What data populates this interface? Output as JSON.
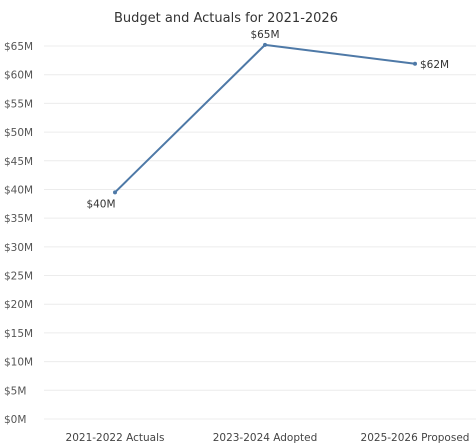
{
  "chart_data": {
    "type": "line",
    "title": "Budget and Actuals for 2021-2026",
    "xlabel": "",
    "ylabel": "",
    "categories": [
      "2021-2022 Actuals",
      "2023-2024 Adopted",
      "2025-2026 Proposed"
    ],
    "values": [
      39.5,
      65.2,
      61.9
    ],
    "data_labels": [
      "$40M",
      "$65M",
      "$62M"
    ],
    "ylim": [
      0,
      67
    ],
    "yticks": [
      0,
      5,
      10,
      15,
      20,
      25,
      30,
      35,
      40,
      45,
      50,
      55,
      60,
      65
    ],
    "ytick_labels": [
      "$0M",
      "$5M",
      "$10M",
      "$15M",
      "$20M",
      "$25M",
      "$30M",
      "$35M",
      "$40M",
      "$45M",
      "$50M",
      "$55M",
      "$60M",
      "$65M"
    ],
    "line_color": "#4e79a7",
    "grid": true,
    "legend": "none"
  }
}
